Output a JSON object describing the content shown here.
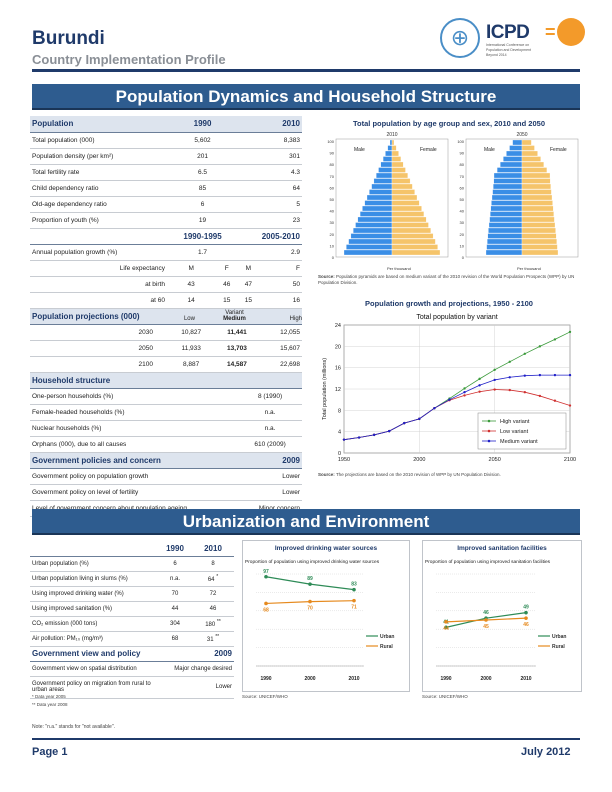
{
  "header": {
    "country": "Burundi",
    "subtitle": "Country Implementation Profile",
    "logo_text": "ICPD",
    "logo_small": "International Conference on Population and Development Beyond 2014"
  },
  "section1": {
    "title": "Population Dynamics and Household Structure"
  },
  "population_table": {
    "header": {
      "label": "Population",
      "y1": "1990",
      "y2": "2010"
    },
    "rows": [
      {
        "label": "Total population (000)",
        "v1": "5,602",
        "v2": "8,383"
      },
      {
        "label": "Population density (per km²)",
        "v1": "201",
        "v2": "301"
      },
      {
        "label": "Total fertility rate",
        "v1": "6.5",
        "v2": "4.3"
      },
      {
        "label": "Child dependency ratio",
        "v1": "85",
        "v2": "64"
      },
      {
        "label": "Old-age dependency ratio",
        "v1": "6",
        "v2": "5"
      },
      {
        "label": "Proportion of youth (%)",
        "v1": "19",
        "v2": "23"
      }
    ],
    "period_header": {
      "p1": "1990-1995",
      "p2": "2005-2010"
    },
    "growth": {
      "label": "Annual population growth (%)",
      "v1": "1.7",
      "v2": "2.9"
    },
    "life": {
      "label": "Life expectancy",
      "sub": [
        "M",
        "F",
        "M",
        "F"
      ],
      "at_birth_label": "at birth",
      "at_birth": [
        "43",
        "46",
        "47",
        "50"
      ],
      "at60_label": "at 60",
      "at60": [
        "14",
        "15",
        "15",
        "16"
      ]
    },
    "projections": {
      "label": "Population projections (000)",
      "variant": "Variant",
      "cols": [
        "Low",
        "Medium",
        "High"
      ],
      "rows": [
        {
          "year": "2030",
          "vals": [
            "10,827",
            "11,441",
            "12,055"
          ]
        },
        {
          "year": "2050",
          "vals": [
            "11,933",
            "13,703",
            "15,607"
          ]
        },
        {
          "year": "2100",
          "vals": [
            "8,887",
            "14,587",
            "22,698"
          ]
        }
      ]
    },
    "household": {
      "label": "Household structure",
      "rows": [
        {
          "label": "One-person households (%)",
          "val": "8 (1990)"
        },
        {
          "label": "Female-headed households (%)",
          "val": "n.a."
        },
        {
          "label": "Nuclear households (%)",
          "val": "n.a."
        },
        {
          "label": "Orphans (000), due to all causes",
          "val": "610 (2009)"
        }
      ]
    },
    "policies": {
      "label": "Government policies and concern",
      "year": "2009",
      "rows": [
        {
          "label": "Government policy on population growth",
          "val": "Lower"
        },
        {
          "label": "Government policy on level of fertility",
          "val": "Lower"
        },
        {
          "label": "Level of government concern about population ageing",
          "val": "Minor concern"
        }
      ]
    }
  },
  "pyramid": {
    "title": "Total population by age group and sex, 2010 and 2050",
    "years": [
      "2010",
      "2050"
    ],
    "male": "Male",
    "female": "Female",
    "ages": [
      "100",
      "90",
      "80",
      "70",
      "60",
      "50",
      "40",
      "30",
      "20",
      "10",
      "0"
    ],
    "male_color": "#3a8ee6",
    "female_color": "#f5c46a",
    "source_label": "Source:",
    "source": "Population pyramids are based on medium variant of the 2010 revision of the World Population Prospects (WPP) by UN Population Division.",
    "xlabel": "Per thousand"
  },
  "growth_chart": {
    "title": "Population growth and projections, 1950 - 2100",
    "chart_data": {
      "type": "line",
      "title": "Total population by variant",
      "xlabel": "",
      "ylabel": "Total population (millions)",
      "xlim": [
        1950,
        2100
      ],
      "ylim": [
        0,
        24
      ],
      "x_ticks": [
        "1950",
        "2000",
        "2050",
        "2100"
      ],
      "y_ticks": [
        "0",
        "4",
        "8",
        "12",
        "16",
        "20",
        "24"
      ],
      "series": [
        {
          "name": "High variant",
          "color": "#3a9a3a",
          "x": [
            1950,
            1960,
            1970,
            1980,
            1990,
            2000,
            2010,
            2020,
            2030,
            2040,
            2050,
            2060,
            2070,
            2080,
            2090,
            2100
          ],
          "y": [
            2.5,
            2.9,
            3.4,
            4.1,
            5.6,
            6.4,
            8.4,
            10.2,
            12.1,
            13.9,
            15.6,
            17.1,
            18.6,
            20.0,
            21.3,
            22.7
          ]
        },
        {
          "name": "Low variant",
          "color": "#d03030",
          "x": [
            1950,
            1960,
            1970,
            1980,
            1990,
            2000,
            2010,
            2020,
            2030,
            2040,
            2050,
            2060,
            2070,
            2080,
            2090,
            2100
          ],
          "y": [
            2.5,
            2.9,
            3.4,
            4.1,
            5.6,
            6.4,
            8.4,
            9.9,
            10.8,
            11.5,
            11.9,
            11.8,
            11.4,
            10.7,
            9.8,
            8.9
          ]
        },
        {
          "name": "Medium variant",
          "color": "#2020c8",
          "x": [
            1950,
            1960,
            1970,
            1980,
            1990,
            2000,
            2010,
            2020,
            2030,
            2040,
            2050,
            2060,
            2070,
            2080,
            2090,
            2100
          ],
          "y": [
            2.5,
            2.9,
            3.4,
            4.1,
            5.6,
            6.4,
            8.4,
            10.0,
            11.4,
            12.7,
            13.7,
            14.2,
            14.5,
            14.6,
            14.6,
            14.6
          ]
        }
      ]
    },
    "source_label": "Source:",
    "source": "The projections are based on the 2010 revision of WPP by UN Population Division."
  },
  "section2": {
    "title": "Urbanization and Environment"
  },
  "urban_table": {
    "y1": "1990",
    "y2": "2010",
    "rows": [
      {
        "label": "Urban population (%)",
        "v1": "6",
        "v2": "8",
        "note": ""
      },
      {
        "label": "Urban population living in slums (%)",
        "v1": "n.a.",
        "v2": "64",
        "note": "*"
      },
      {
        "label": "Using improved drinking water (%)",
        "v1": "70",
        "v2": "72",
        "note": ""
      },
      {
        "label": "Using improved sanitation (%)",
        "v1": "44",
        "v2": "46",
        "note": ""
      },
      {
        "label": "CO₂ emission (000 tons)",
        "v1": "304",
        "v2": "180",
        "note": "**"
      },
      {
        "label": "Air pollution: PM₁₀ (mg/m³)",
        "v1": "68",
        "v2": "31",
        "note": "**"
      }
    ],
    "gov_label": "Government view and policy",
    "gov_year": "2009",
    "gov_rows": [
      {
        "label": "Government view on spatial distribution",
        "val": "Major change desired"
      },
      {
        "label": "Government policy on migration from rural to urban areas",
        "val": "Lower"
      }
    ],
    "notes": [
      "* Data year 2005",
      "** Data year 2008"
    ],
    "footnote": "Note: \"n.a.\" stands for \"not available\"."
  },
  "water_chart": {
    "title": "Improved drinking water sources",
    "subtitle": "Proportion of population using improved drinking water sources",
    "source": "Source: UNICEF/WHO",
    "chart_data": {
      "type": "line",
      "x": [
        "1990",
        "2000",
        "2010"
      ],
      "ylim": [
        0,
        100
      ],
      "series": [
        {
          "name": "Urban",
          "color": "#2e8b57",
          "values": [
            97,
            89,
            83
          ]
        },
        {
          "name": "Rural",
          "color": "#e68a1e",
          "values": [
            68,
            70,
            71
          ]
        }
      ]
    }
  },
  "sanit_chart": {
    "title": "Improved sanitation facilities",
    "subtitle": "Proportion of population using improved sanitation facilities",
    "source": "Source: UNICEF/WHO",
    "chart_data": {
      "type": "line",
      "x": [
        "1990",
        "2000",
        "2010"
      ],
      "ylim": [
        20,
        70
      ],
      "series": [
        {
          "name": "Urban",
          "color": "#2e8b57",
          "values": [
            41,
            46,
            49
          ]
        },
        {
          "name": "Rural",
          "color": "#e68a1e",
          "values": [
            44,
            45,
            46
          ]
        }
      ]
    }
  },
  "footer": {
    "page": "Page 1",
    "date": "July 2012"
  }
}
